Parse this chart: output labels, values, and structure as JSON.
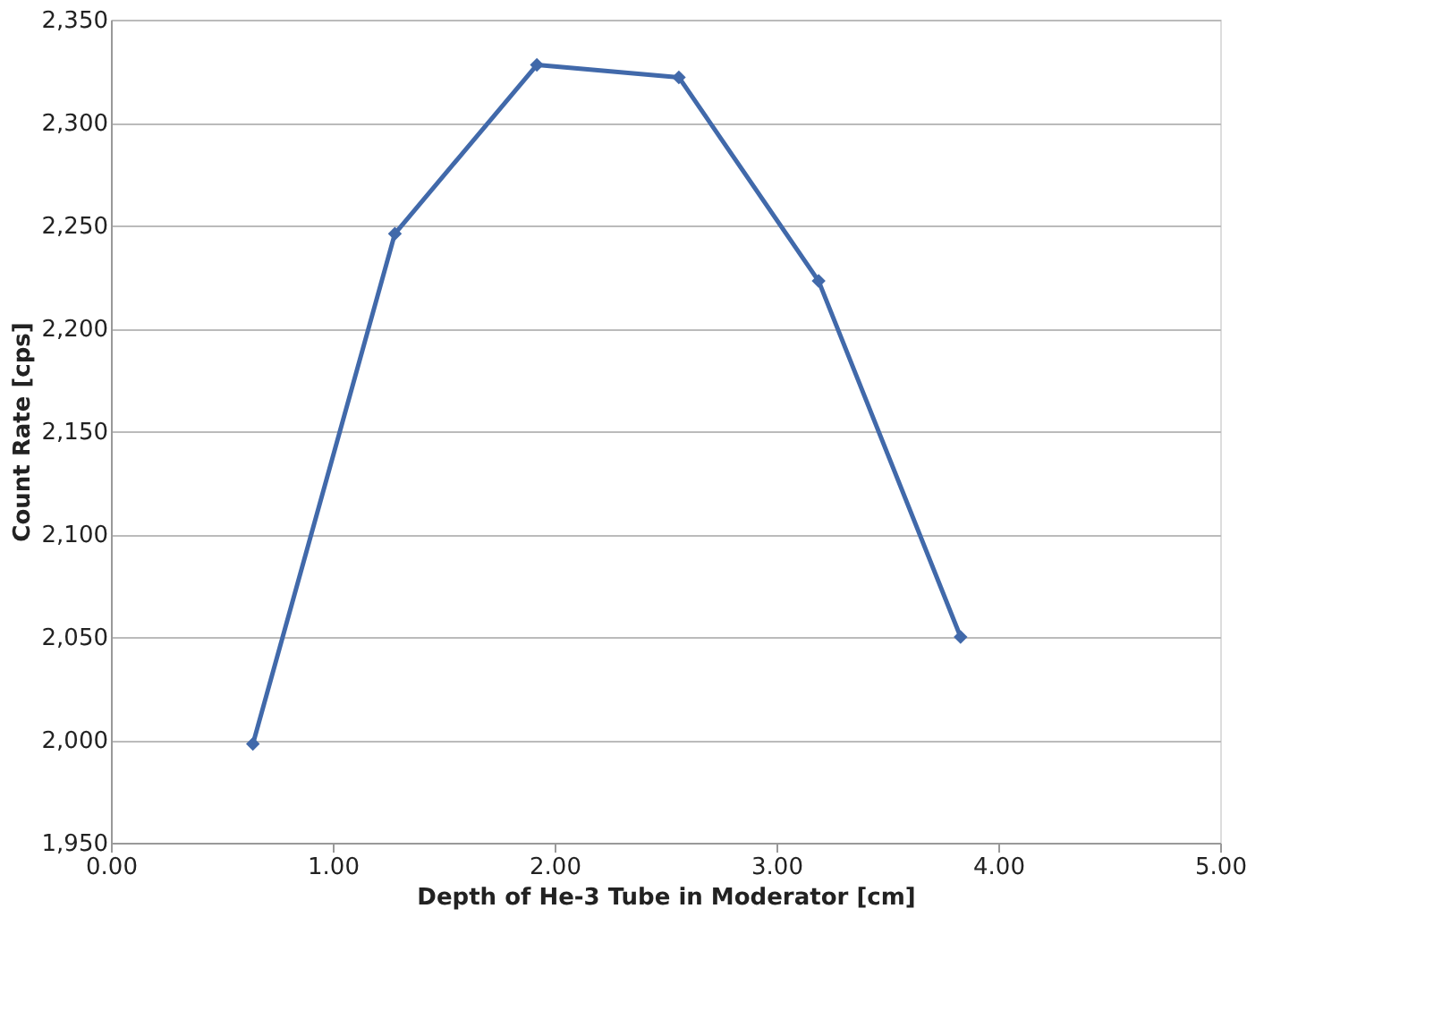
{
  "chart_data": {
    "type": "line",
    "xlabel": "Depth of He-3 Tube in Moderator [cm]",
    "ylabel": "Count Rate [cps]",
    "x": [
      0.64,
      1.28,
      1.92,
      2.56,
      3.19,
      3.83
    ],
    "series": [
      {
        "color": "#4169aa",
        "values": [
          1998,
          2246,
          2328,
          2322,
          2223,
          2050
        ]
      }
    ],
    "xlim": [
      0,
      5
    ],
    "xticks": [
      {
        "value": 0,
        "label": "0.00"
      },
      {
        "value": 1,
        "label": "1.00"
      },
      {
        "value": 2,
        "label": "2.00"
      },
      {
        "value": 3,
        "label": "3.00"
      },
      {
        "value": 4,
        "label": "4.00"
      },
      {
        "value": 5,
        "label": "5.00"
      }
    ],
    "ylim": [
      1950,
      2350
    ],
    "yticks": [
      {
        "value": 1950,
        "label": "1,950"
      },
      {
        "value": 2000,
        "label": "2,000"
      },
      {
        "value": 2050,
        "label": "2,050"
      },
      {
        "value": 2100,
        "label": "2,100"
      },
      {
        "value": 2150,
        "label": "2,150"
      },
      {
        "value": 2200,
        "label": "2,200"
      },
      {
        "value": 2250,
        "label": "2,250"
      },
      {
        "value": 2300,
        "label": "2,300"
      },
      {
        "value": 2350,
        "label": "2,350"
      }
    ],
    "grid": "y",
    "marker": "diamond",
    "line_style": "solid"
  }
}
